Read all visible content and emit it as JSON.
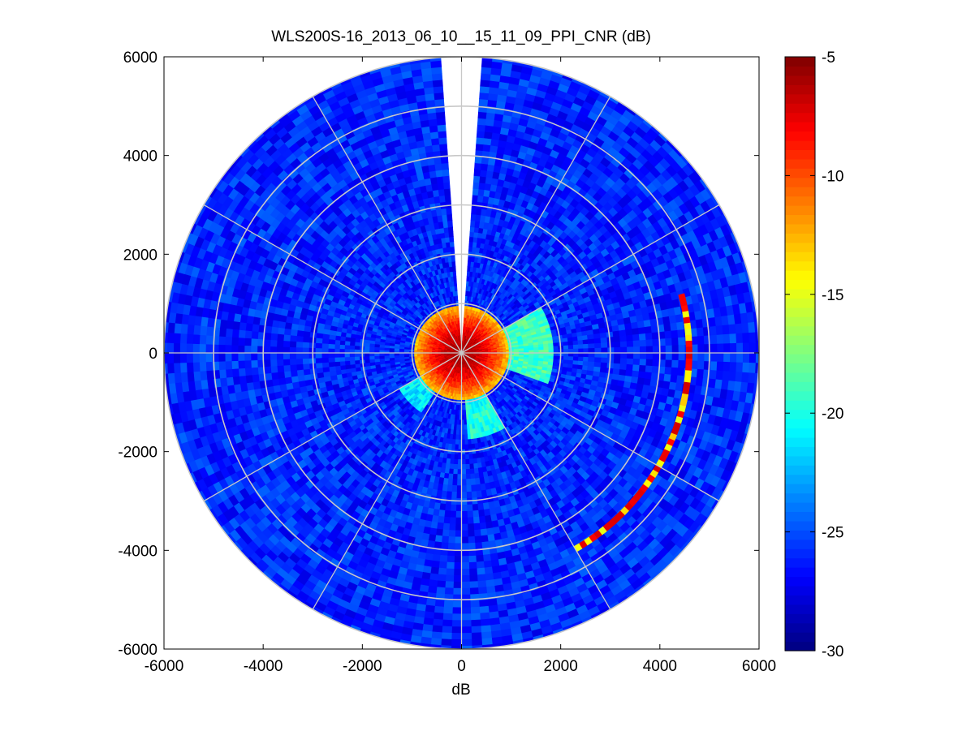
{
  "chart_data": {
    "type": "heatmap",
    "subtype": "polar-ppi-scan",
    "title": "WLS200S-16_2013_06_10__15_11_09_PPI_CNR (dB)",
    "xlabel": "dB",
    "ylabel": "",
    "xlim": [
      -6000,
      6000
    ],
    "ylim": [
      -6000,
      6000
    ],
    "x_ticks": [
      "-6000",
      "-4000",
      "-2000",
      "0",
      "2000",
      "4000",
      "6000"
    ],
    "y_ticks": [
      "6000",
      "4000",
      "2000",
      "0",
      "-2000",
      "-4000",
      "-6000"
    ],
    "x_tick_values": [
      -6000,
      -4000,
      -2000,
      0,
      2000,
      4000,
      6000
    ],
    "y_tick_values": [
      6000,
      4000,
      2000,
      0,
      -2000,
      -4000,
      -6000
    ],
    "max_range": 6000,
    "range_rings": [
      1000,
      2000,
      3000,
      4000,
      5000,
      6000
    ],
    "spokes_deg": [
      0,
      30,
      60,
      90,
      120,
      150,
      180,
      210,
      240,
      270,
      300,
      330
    ],
    "missing_sector_deg": [
      -4,
      4
    ],
    "background_cnr_db": -26,
    "near_field": {
      "max_range": 950,
      "cnr_center_db": -6,
      "cnr_edge_db": -13
    },
    "features": [
      {
        "label": "east plume",
        "bearing_deg": [
          60,
          110
        ],
        "range": [
          800,
          1900
        ],
        "cnr_db": -19
      },
      {
        "label": "south-west patch",
        "bearing_deg": [
          215,
          240
        ],
        "range": [
          900,
          1500
        ],
        "cnr_db": -21
      },
      {
        "label": "south patch",
        "bearing_deg": [
          150,
          175
        ],
        "range": [
          900,
          1800
        ],
        "cnr_db": -20
      },
      {
        "label": "arc echo",
        "bearing_deg": [
          75,
          150
        ],
        "range": [
          4530,
          4650
        ],
        "cnr_db": [
          -7,
          -15
        ]
      }
    ],
    "colorbar": {
      "colormap": "jet",
      "range": [
        -30,
        -5
      ],
      "ticks": [
        "-5",
        "-10",
        "-15",
        "-20",
        "-25",
        "-30"
      ],
      "tick_values": [
        -5,
        -10,
        -15,
        -20,
        -25,
        -30
      ]
    },
    "grid": true
  }
}
